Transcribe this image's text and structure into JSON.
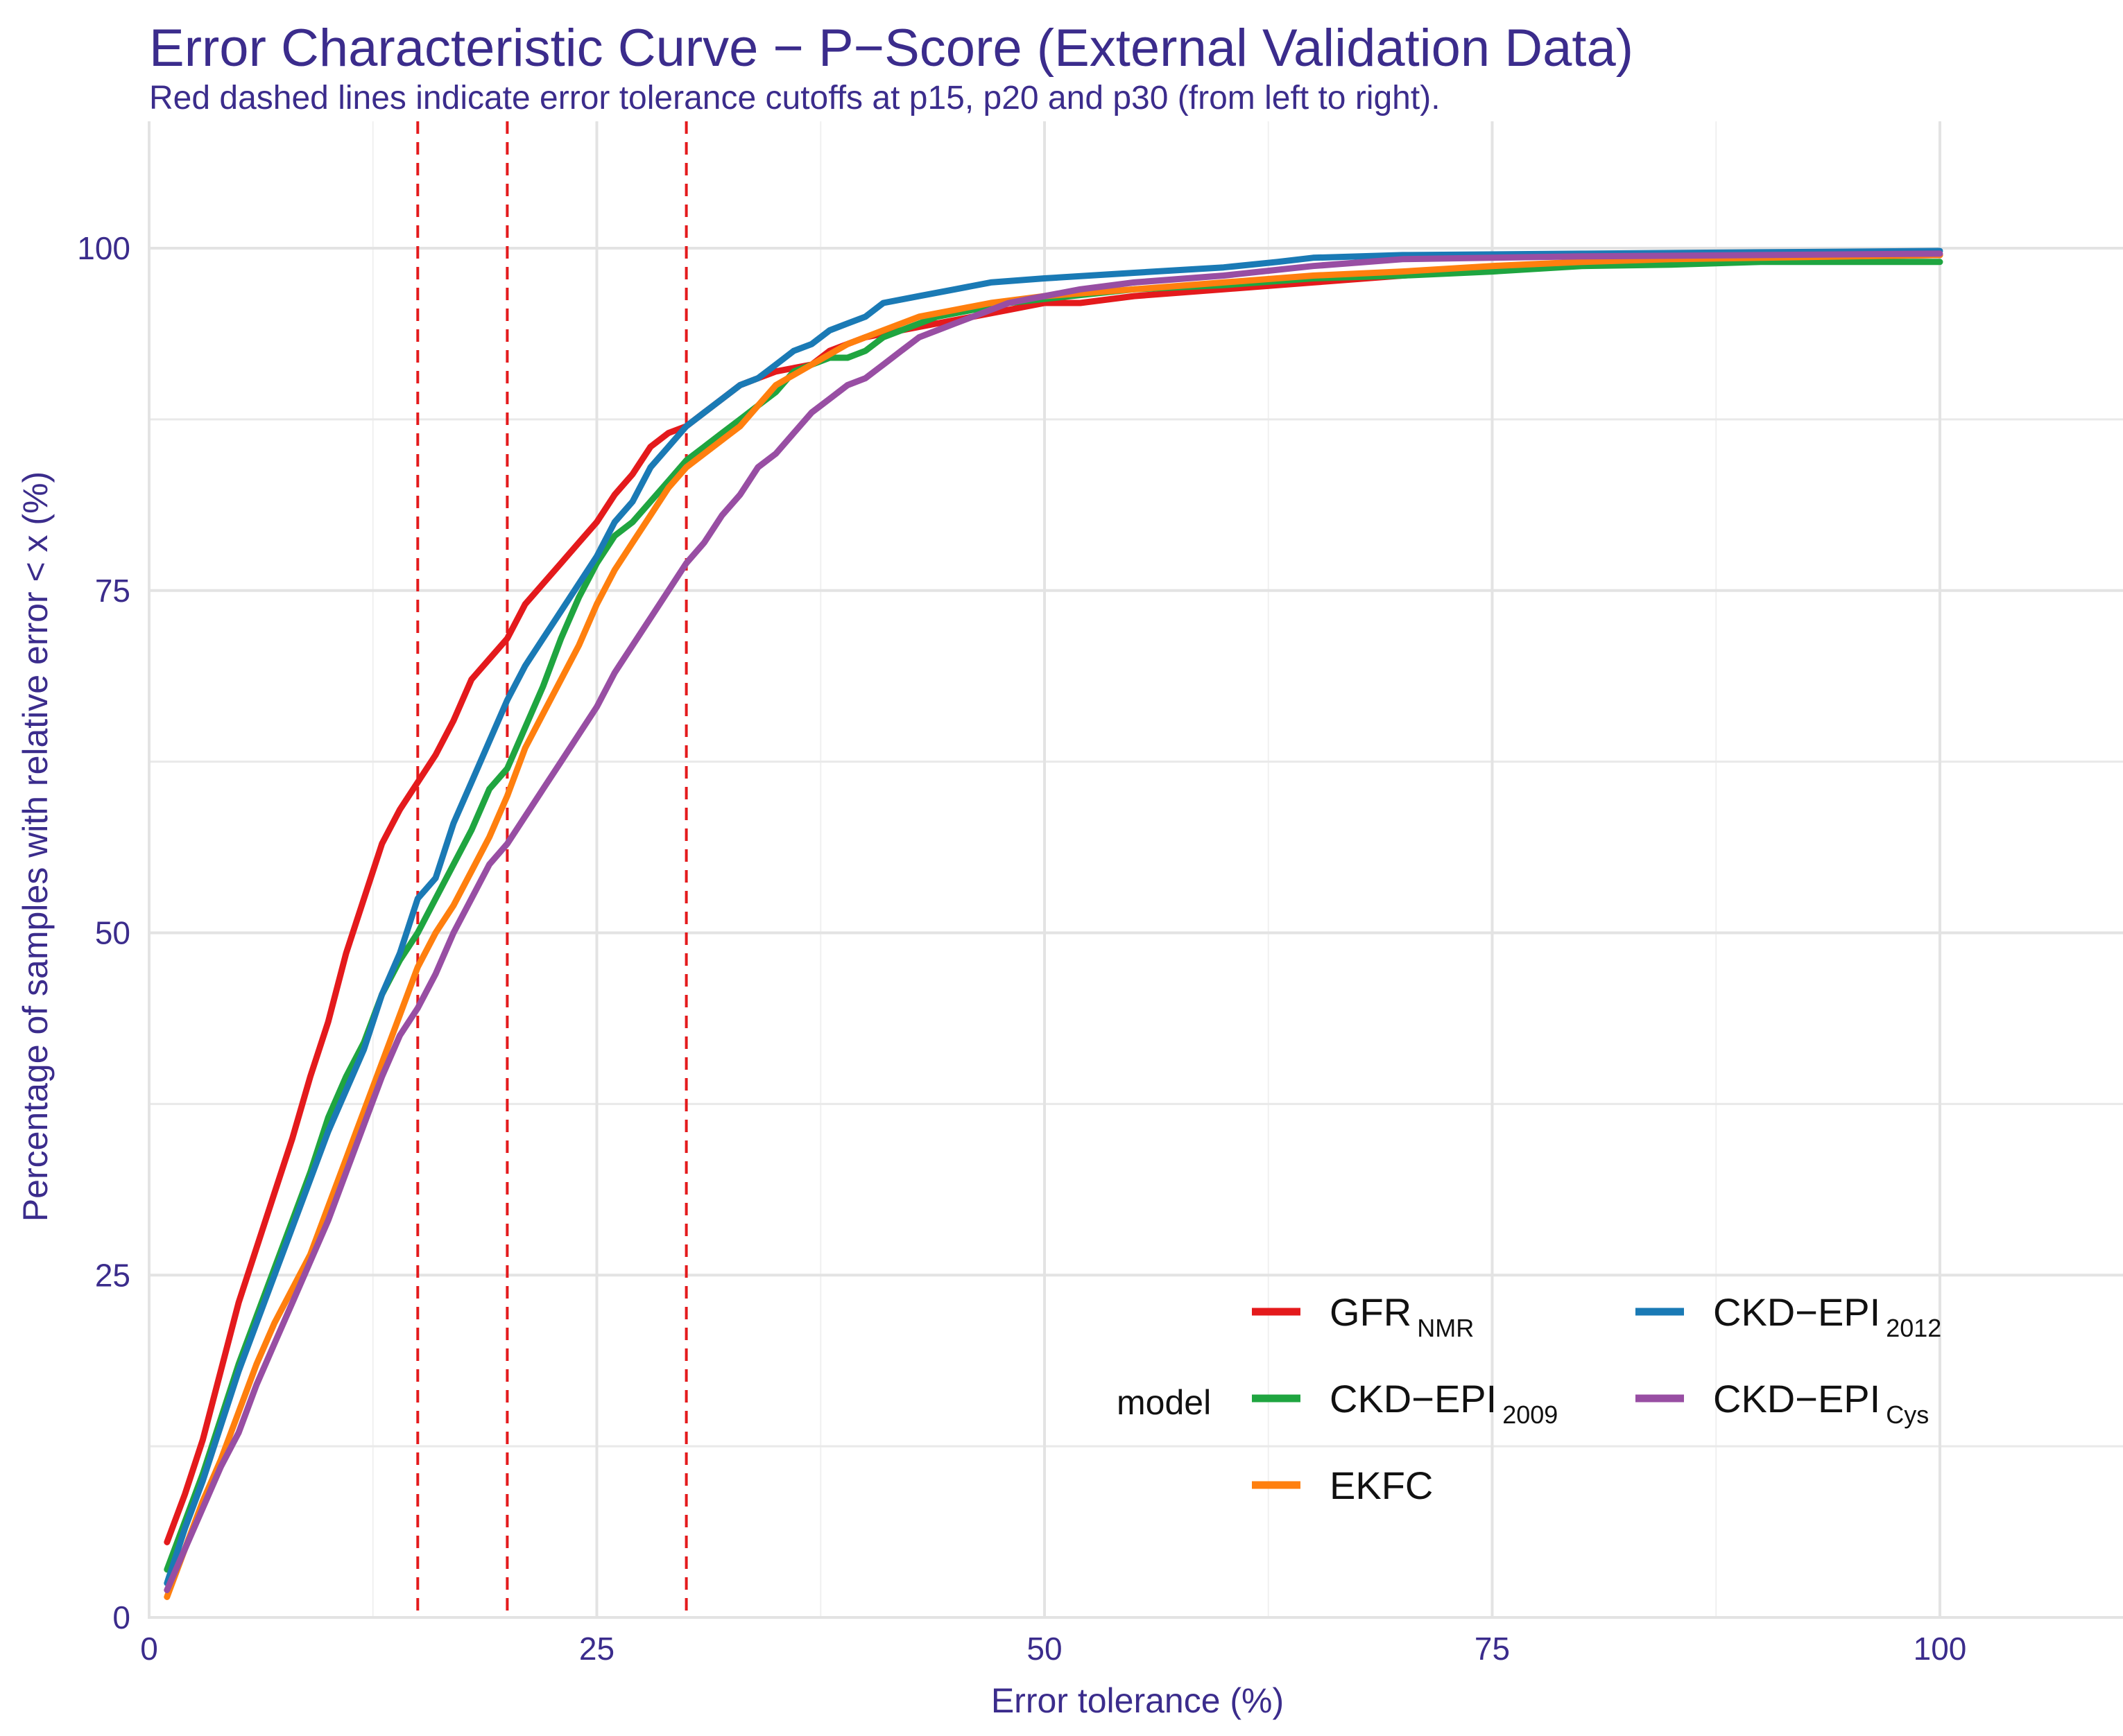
{
  "chart_data": {
    "type": "line",
    "title": "Error Characteristic Curve − P−Score (External Validation Data)",
    "subtitle": "Red dashed lines indicate error tolerance cutoffs at p15, p20 and p30 (from left to right).",
    "xlabel": "Error tolerance (%)",
    "ylabel": "Percentage of samples with relative error < x (%)",
    "xlim": [
      0,
      110
    ],
    "ylim": [
      0,
      105
    ],
    "x_ticks": [
      "0",
      "25",
      "50",
      "75",
      "100"
    ],
    "y_ticks": [
      "0",
      "25",
      "50",
      "75",
      "100"
    ],
    "cutoffs": [
      15,
      20,
      30
    ],
    "cutoff_color": "#e41a1c",
    "legend": {
      "title": "model",
      "position": "bottom-right"
    },
    "series": [
      {
        "name": "GFR",
        "subscript": "NMR",
        "color": "#e41a1c",
        "points": [
          [
            1,
            5.5
          ],
          [
            2,
            9
          ],
          [
            3,
            13
          ],
          [
            4,
            18
          ],
          [
            5,
            23
          ],
          [
            6,
            27
          ],
          [
            7,
            31
          ],
          [
            8,
            35
          ],
          [
            9,
            39.5
          ],
          [
            10,
            43.5
          ],
          [
            11,
            48.5
          ],
          [
            12,
            52.5
          ],
          [
            13,
            56.5
          ],
          [
            14,
            59
          ],
          [
            15,
            61
          ],
          [
            16,
            63
          ],
          [
            17,
            65.5
          ],
          [
            18,
            68.5
          ],
          [
            19,
            70
          ],
          [
            20,
            71.5
          ],
          [
            21,
            74
          ],
          [
            22,
            75.5
          ],
          [
            23,
            77
          ],
          [
            24,
            78.5
          ],
          [
            25,
            80
          ],
          [
            26,
            82
          ],
          [
            27,
            83.5
          ],
          [
            28,
            85.5
          ],
          [
            29,
            86.5
          ],
          [
            30,
            87
          ],
          [
            31,
            88
          ],
          [
            32,
            89
          ],
          [
            33,
            90
          ],
          [
            34,
            90.5
          ],
          [
            35,
            91
          ],
          [
            37,
            91.5
          ],
          [
            38,
            92.5
          ],
          [
            40,
            93.5
          ],
          [
            42,
            94
          ],
          [
            44,
            94.5
          ],
          [
            46,
            95
          ],
          [
            48,
            95.5
          ],
          [
            50,
            96
          ],
          [
            52,
            96
          ],
          [
            55,
            96.5
          ],
          [
            60,
            97
          ],
          [
            65,
            97.5
          ],
          [
            70,
            98
          ],
          [
            75,
            98.5
          ],
          [
            80,
            99
          ],
          [
            85,
            99
          ],
          [
            90,
            99.3
          ],
          [
            95,
            99.4
          ],
          [
            100,
            99.5
          ]
        ]
      },
      {
        "name": "CKD−EPI",
        "subscript": "2009",
        "color": "#1fa540",
        "points": [
          [
            1,
            3.5
          ],
          [
            2,
            7
          ],
          [
            3,
            10.5
          ],
          [
            4,
            14.5
          ],
          [
            5,
            18.5
          ],
          [
            6,
            22
          ],
          [
            7,
            25.5
          ],
          [
            8,
            29
          ],
          [
            9,
            32.5
          ],
          [
            10,
            36.5
          ],
          [
            11,
            39.5
          ],
          [
            12,
            42
          ],
          [
            13,
            45.5
          ],
          [
            14,
            48
          ],
          [
            15,
            50
          ],
          [
            16,
            52.5
          ],
          [
            17,
            55
          ],
          [
            18,
            57.5
          ],
          [
            19,
            60.5
          ],
          [
            20,
            62
          ],
          [
            21,
            65
          ],
          [
            22,
            68
          ],
          [
            23,
            71.5
          ],
          [
            24,
            74.5
          ],
          [
            25,
            77
          ],
          [
            26,
            79
          ],
          [
            27,
            80
          ],
          [
            28,
            81.5
          ],
          [
            29,
            83
          ],
          [
            30,
            84.5
          ],
          [
            31,
            85.5
          ],
          [
            32,
            86.5
          ],
          [
            33,
            87.5
          ],
          [
            34,
            88.5
          ],
          [
            35,
            89.5
          ],
          [
            36,
            91
          ],
          [
            37,
            91.5
          ],
          [
            38,
            92
          ],
          [
            39,
            92
          ],
          [
            40,
            92.5
          ],
          [
            41,
            93.5
          ],
          [
            42,
            94
          ],
          [
            44,
            95
          ],
          [
            46,
            95.5
          ],
          [
            48,
            96
          ],
          [
            50,
            96.3
          ],
          [
            55,
            97
          ],
          [
            60,
            97.3
          ],
          [
            65,
            97.8
          ],
          [
            70,
            98
          ],
          [
            75,
            98.3
          ],
          [
            80,
            98.7
          ],
          [
            85,
            98.8
          ],
          [
            90,
            99
          ],
          [
            95,
            99
          ],
          [
            100,
            99
          ]
        ]
      },
      {
        "name": "EKFC",
        "subscript": "",
        "color": "#ff7f0e",
        "points": [
          [
            1,
            1.5
          ],
          [
            2,
            5
          ],
          [
            3,
            8.5
          ],
          [
            4,
            11.5
          ],
          [
            5,
            15
          ],
          [
            6,
            18.5
          ],
          [
            7,
            21.5
          ],
          [
            8,
            24
          ],
          [
            9,
            26.5
          ],
          [
            10,
            30
          ],
          [
            11,
            33.5
          ],
          [
            12,
            37
          ],
          [
            13,
            40.5
          ],
          [
            14,
            44
          ],
          [
            15,
            47.5
          ],
          [
            16,
            50
          ],
          [
            17,
            52
          ],
          [
            18,
            54.5
          ],
          [
            19,
            57
          ],
          [
            20,
            60
          ],
          [
            21,
            63.5
          ],
          [
            22,
            66
          ],
          [
            23,
            68.5
          ],
          [
            24,
            71
          ],
          [
            25,
            74
          ],
          [
            26,
            76.5
          ],
          [
            27,
            78.5
          ],
          [
            28,
            80.5
          ],
          [
            29,
            82.5
          ],
          [
            30,
            84
          ],
          [
            31,
            85
          ],
          [
            32,
            86
          ],
          [
            33,
            87
          ],
          [
            34,
            88.5
          ],
          [
            35,
            90
          ],
          [
            37,
            91.5
          ],
          [
            39,
            93
          ],
          [
            41,
            94
          ],
          [
            43,
            95
          ],
          [
            45,
            95.5
          ],
          [
            47,
            96
          ],
          [
            50,
            96.5
          ],
          [
            55,
            97
          ],
          [
            60,
            97.5
          ],
          [
            65,
            98
          ],
          [
            70,
            98.3
          ],
          [
            75,
            98.7
          ],
          [
            80,
            99
          ],
          [
            85,
            99.2
          ],
          [
            90,
            99.3
          ],
          [
            95,
            99.4
          ],
          [
            100,
            99.5
          ]
        ]
      },
      {
        "name": "CKD−EPI",
        "subscript": "2012",
        "color": "#1a7ab5",
        "points": [
          [
            1,
            2.5
          ],
          [
            2,
            6.5
          ],
          [
            3,
            10
          ],
          [
            4,
            14
          ],
          [
            5,
            18
          ],
          [
            6,
            21.5
          ],
          [
            7,
            25
          ],
          [
            8,
            28.5
          ],
          [
            9,
            32
          ],
          [
            10,
            35.5
          ],
          [
            11,
            38.5
          ],
          [
            12,
            41.5
          ],
          [
            13,
            45.5
          ],
          [
            14,
            48.5
          ],
          [
            15,
            52.5
          ],
          [
            16,
            54
          ],
          [
            17,
            58
          ],
          [
            18,
            61
          ],
          [
            19,
            64
          ],
          [
            20,
            67
          ],
          [
            21,
            69.5
          ],
          [
            22,
            71.5
          ],
          [
            23,
            73.5
          ],
          [
            24,
            75.5
          ],
          [
            25,
            77.5
          ],
          [
            26,
            80
          ],
          [
            27,
            81.5
          ],
          [
            28,
            84
          ],
          [
            29,
            85.5
          ],
          [
            30,
            87
          ],
          [
            31,
            88
          ],
          [
            32,
            89
          ],
          [
            33,
            90
          ],
          [
            34,
            90.5
          ],
          [
            35,
            91.5
          ],
          [
            36,
            92.5
          ],
          [
            37,
            93
          ],
          [
            38,
            94
          ],
          [
            39,
            94.5
          ],
          [
            40,
            95
          ],
          [
            41,
            96
          ],
          [
            43,
            96.5
          ],
          [
            45,
            97
          ],
          [
            47,
            97.5
          ],
          [
            50,
            97.8
          ],
          [
            55,
            98.2
          ],
          [
            60,
            98.6
          ],
          [
            63,
            99
          ],
          [
            65,
            99.3
          ],
          [
            70,
            99.5
          ],
          [
            80,
            99.6
          ],
          [
            90,
            99.7
          ],
          [
            100,
            99.8
          ]
        ]
      },
      {
        "name": "CKD−EPI",
        "subscript": "Cys",
        "color": "#984ea3",
        "points": [
          [
            1,
            2
          ],
          [
            2,
            5
          ],
          [
            3,
            8
          ],
          [
            4,
            11
          ],
          [
            5,
            13.5
          ],
          [
            6,
            17
          ],
          [
            7,
            20
          ],
          [
            8,
            23
          ],
          [
            9,
            26
          ],
          [
            10,
            29
          ],
          [
            11,
            32.5
          ],
          [
            12,
            36
          ],
          [
            13,
            39.5
          ],
          [
            14,
            42.5
          ],
          [
            15,
            44.5
          ],
          [
            16,
            47
          ],
          [
            17,
            50
          ],
          [
            18,
            52.5
          ],
          [
            19,
            55
          ],
          [
            20,
            56.5
          ],
          [
            21,
            58.5
          ],
          [
            22,
            60.5
          ],
          [
            23,
            62.5
          ],
          [
            24,
            64.5
          ],
          [
            25,
            66.5
          ],
          [
            26,
            69
          ],
          [
            27,
            71
          ],
          [
            28,
            73
          ],
          [
            29,
            75
          ],
          [
            30,
            77
          ],
          [
            31,
            78.5
          ],
          [
            32,
            80.5
          ],
          [
            33,
            82
          ],
          [
            34,
            84
          ],
          [
            35,
            85
          ],
          [
            36,
            86.5
          ],
          [
            37,
            88
          ],
          [
            38,
            89
          ],
          [
            39,
            90
          ],
          [
            40,
            90.5
          ],
          [
            41,
            91.5
          ],
          [
            42,
            92.5
          ],
          [
            43,
            93.5
          ],
          [
            44,
            94
          ],
          [
            45,
            94.5
          ],
          [
            46,
            95
          ],
          [
            48,
            96
          ],
          [
            50,
            96.5
          ],
          [
            52,
            97
          ],
          [
            55,
            97.5
          ],
          [
            60,
            98
          ],
          [
            65,
            98.7
          ],
          [
            70,
            99.2
          ],
          [
            80,
            99.4
          ],
          [
            90,
            99.5
          ],
          [
            100,
            99.6
          ]
        ]
      }
    ]
  }
}
